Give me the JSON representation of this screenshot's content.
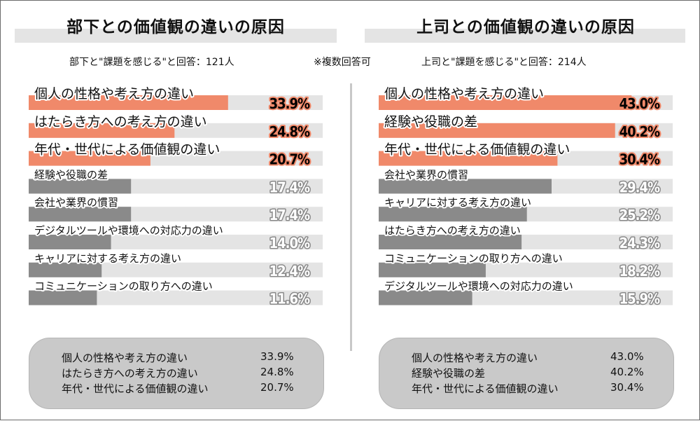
{
  "note": "※複数回答可",
  "summary_left": [
    {
      "label": "個人の性格や考え方の違い",
      "value": "33.9%"
    },
    {
      "label": "はたらき方への考え方の違い",
      "value": "24.8%"
    },
    {
      "label": "年代・世代による価値観の違い",
      "value": "20.7%"
    }
  ],
  "summary_right": [
    {
      "label": "個人の性格や考え方の違い",
      "value": "43.0%"
    },
    {
      "label": "経験や役職の差",
      "value": "40.2%"
    },
    {
      "label": "年代・世代による価値観の違い",
      "value": "30.4%"
    }
  ],
  "colors": {
    "highlight": "#f0896a",
    "normal": "#8a8a8a",
    "track": "#e4e4e4",
    "highlight_text": "#000000",
    "normal_text": "#ffffff"
  },
  "chart_data": [
    {
      "type": "bar",
      "orientation": "horizontal",
      "title": "部下との価値観の違いの原因",
      "subtitle": "部下と\"課題を感じる\"と回答：121人",
      "xlim": [
        0,
        50
      ],
      "categories": [
        "個人の性格や考え方の違い",
        "はたらき方への考え方の違い",
        "年代・世代による価値観の違い",
        "経験や役職の差",
        "会社や業界の慣習",
        "デジタルツールや環境への対応力の違い",
        "キャリアに対する考え方の違い",
        "コミュニケーションの取り方への違い"
      ],
      "values": [
        33.9,
        24.8,
        20.7,
        17.4,
        17.4,
        14.0,
        12.4,
        11.6
      ],
      "value_labels": [
        "33.9%",
        "24.8%",
        "20.7%",
        "17.4%",
        "17.4%",
        "14.0%",
        "12.4%",
        "11.6%"
      ],
      "highlighted_top": 3
    },
    {
      "type": "bar",
      "orientation": "horizontal",
      "title": "上司との価値観の違いの原因",
      "subtitle": "上司と\"課題を感じる\"と回答：214人",
      "xlim": [
        0,
        50
      ],
      "categories": [
        "個人の性格や考え方の違い",
        "経験や役職の差",
        "年代・世代による価値観の違い",
        "会社や業界の慣習",
        "キャリアに対する考え方の違い",
        "はたらき方への考え方の違い",
        "コミュニケーションの取り方への違い",
        "デジタルツールや環境への対応力の違い"
      ],
      "values": [
        43.0,
        40.2,
        30.4,
        29.4,
        25.2,
        24.3,
        18.2,
        15.9
      ],
      "value_labels": [
        "43.0%",
        "40.2%",
        "30.4%",
        "29.4%",
        "25.2%",
        "24.3%",
        "18.2%",
        "15.9%"
      ],
      "highlighted_top": 3
    }
  ]
}
